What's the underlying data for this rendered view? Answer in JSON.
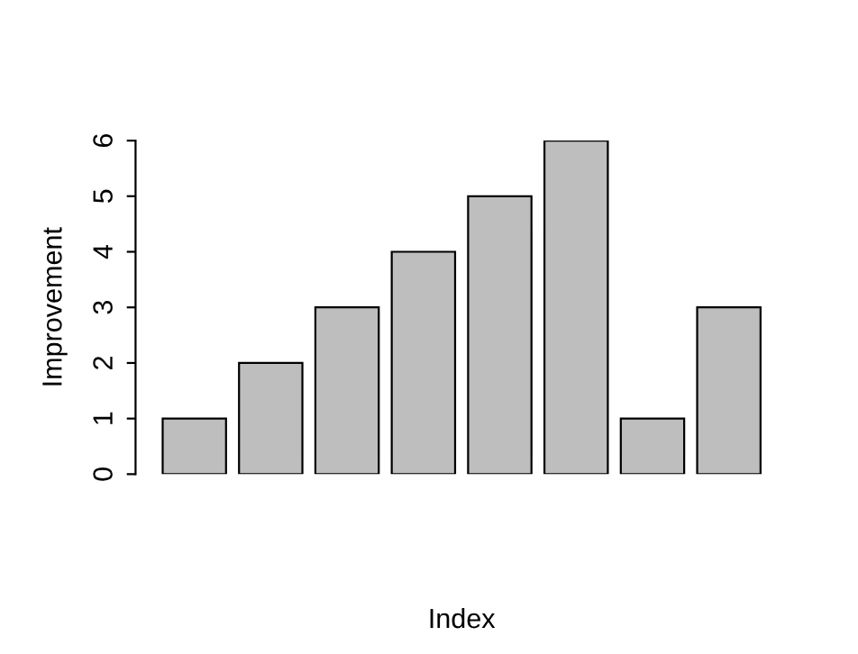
{
  "chart_data": {
    "type": "bar",
    "xlabel": "Index",
    "ylabel": "Improvement",
    "categories": [
      null,
      null,
      null,
      null,
      null,
      null,
      null,
      null
    ],
    "values": [
      1,
      2,
      3,
      4,
      5,
      6,
      1,
      3
    ],
    "color": "#bebebe",
    "ylim": [
      0,
      6
    ],
    "yticks": [
      0,
      1,
      2,
      3,
      4,
      5,
      6
    ],
    "grid": false,
    "legend": false
  }
}
